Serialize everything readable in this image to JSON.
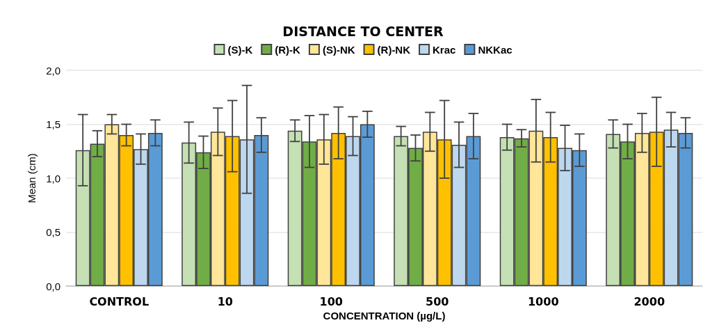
{
  "chart_data": {
    "type": "bar",
    "title": "DISTANCE TO CENTER",
    "xlabel": "CONCENTRATION (µg/L)",
    "ylabel": "Mean (cm)",
    "categories": [
      "CONTROL",
      "10",
      "100",
      "500",
      "1000",
      "2000"
    ],
    "series": [
      {
        "name": "(S)-K",
        "color": "#c5e0b4",
        "values": [
          1.26,
          1.33,
          1.44,
          1.39,
          1.38,
          1.41
        ],
        "errors": [
          0.33,
          0.19,
          0.1,
          0.09,
          0.12,
          0.13
        ]
      },
      {
        "name": "(R)-K",
        "color": "#70ad47",
        "values": [
          1.32,
          1.24,
          1.34,
          1.28,
          1.37,
          1.34
        ],
        "errors": [
          0.12,
          0.15,
          0.24,
          0.12,
          0.08,
          0.16
        ]
      },
      {
        "name": "(S)-NK",
        "color": "#ffe699",
        "values": [
          1.5,
          1.43,
          1.36,
          1.43,
          1.44,
          1.42
        ],
        "errors": [
          0.09,
          0.22,
          0.23,
          0.18,
          0.29,
          0.18
        ]
      },
      {
        "name": "(R)-NK",
        "color": "#ffc000",
        "values": [
          1.4,
          1.39,
          1.42,
          1.36,
          1.38,
          1.43
        ],
        "errors": [
          0.1,
          0.33,
          0.24,
          0.36,
          0.23,
          0.32
        ]
      },
      {
        "name": "Krac",
        "color": "#bdd7ee",
        "values": [
          1.27,
          1.36,
          1.39,
          1.31,
          1.28,
          1.45
        ],
        "errors": [
          0.14,
          0.5,
          0.18,
          0.21,
          0.21,
          0.16
        ]
      },
      {
        "name": "NKKac",
        "color": "#5b9bd5",
        "values": [
          1.42,
          1.4,
          1.5,
          1.39,
          1.26,
          1.42
        ],
        "errors": [
          0.12,
          0.16,
          0.12,
          0.21,
          0.15,
          0.14
        ]
      }
    ],
    "ylim": [
      0,
      2
    ],
    "yticks": [
      {
        "value": 0,
        "label": "0,0"
      },
      {
        "value": 0.5,
        "label": "0,5"
      },
      {
        "value": 1,
        "label": "1,0"
      },
      {
        "value": 1.5,
        "label": "1,5"
      },
      {
        "value": 2,
        "label": "2,0"
      }
    ],
    "grid": "y",
    "legend": "top"
  }
}
